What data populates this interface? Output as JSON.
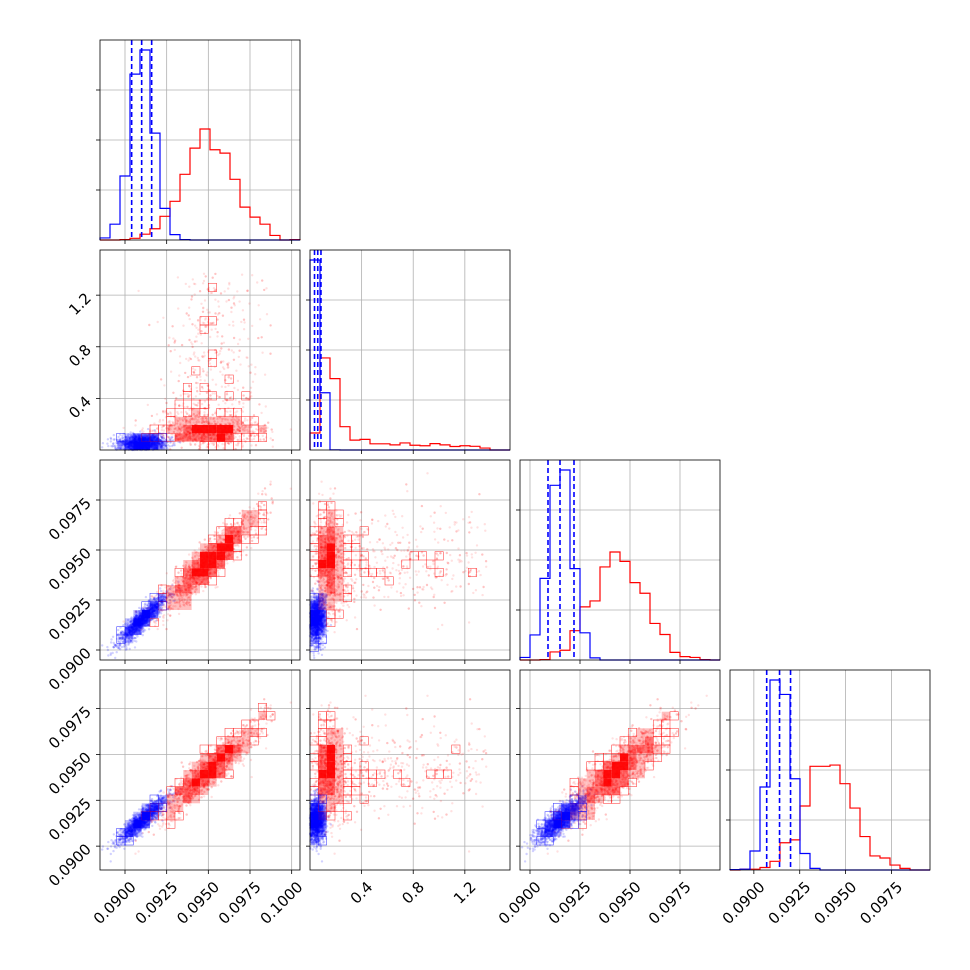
{
  "chart_data": {
    "type": "corner",
    "parameters": 4,
    "series": [
      {
        "name": "",
        "color": "#0000ff",
        "marginals": [
          {
            "mean": 0.091,
            "sd": 0.0007,
            "quantiles": [
              0.0904,
              0.091,
              0.0916
            ]
          },
          {
            "mean": 0.06,
            "sd": 0.03,
            "quantiles": [
              0.035,
              0.06,
              0.085
            ]
          },
          {
            "mean": 0.0915,
            "sd": 0.0006,
            "quantiles": [
              0.0909,
              0.0915,
              0.0922
            ]
          },
          {
            "mean": 0.0914,
            "sd": 0.0006,
            "quantiles": [
              0.0907,
              0.0914,
              0.092
            ]
          }
        ]
      },
      {
        "name": "",
        "color": "#ff0000",
        "marginals": [
          {
            "mean": 0.095,
            "sd": 0.0015
          },
          {
            "mode": 0.15,
            "tail": "right-skewed",
            "max": 1.4
          },
          {
            "mean": 0.0945,
            "sd": 0.0013
          },
          {
            "mean": 0.0942,
            "sd": 0.0013
          }
        ]
      }
    ],
    "axes": [
      {
        "ticks": [
          0.09,
          0.0925,
          0.095,
          0.0975,
          0.1
        ],
        "tick_labels": [
          "0.0900",
          "0.0925",
          "0.0950",
          "0.0975",
          "0.1000"
        ],
        "range": [
          0.0885,
          0.1005
        ]
      },
      {
        "ticks": [
          0.4,
          0.8,
          1.2
        ],
        "tick_labels": [
          "0.4",
          "0.8",
          "1.2"
        ],
        "range": [
          0.0,
          1.55
        ]
      },
      {
        "ticks": [
          0.09,
          0.0925,
          0.095,
          0.0975
        ],
        "tick_labels": [
          "0.0900",
          "0.0925",
          "0.0950",
          "0.0975"
        ],
        "range": [
          0.0895,
          0.0995
        ]
      },
      {
        "ticks": [
          0.09,
          0.0925,
          0.095,
          0.0975
        ],
        "tick_labels": [
          "0.0900",
          "0.0925",
          "0.0950",
          "0.0975"
        ],
        "range": [
          0.0887,
          0.0996
        ]
      }
    ],
    "grid": true
  }
}
